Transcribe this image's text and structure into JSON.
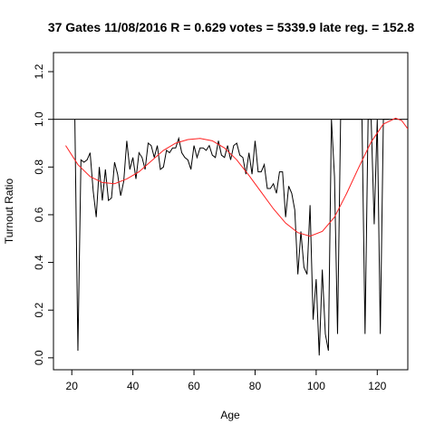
{
  "chart_data": {
    "type": "line",
    "title": "37 Gates 11/08/2016 R = 0.629 votes = 5339.9 late reg. = 152.8",
    "xlabel": "Age",
    "ylabel": "Turnout Ratio",
    "xlim": [
      14,
      130
    ],
    "ylim": [
      -0.05,
      1.28
    ],
    "x_ticks": [
      20,
      40,
      60,
      80,
      100,
      120
    ],
    "x_tick_labels": [
      "20",
      "40",
      "60",
      "80",
      "100",
      "120"
    ],
    "y_ticks": [
      0.0,
      0.2,
      0.4,
      0.6,
      0.8,
      1.0,
      1.2
    ],
    "y_tick_labels": [
      "0.0",
      "0.2",
      "0.4",
      "0.6",
      "0.8",
      "1.0",
      "1.2"
    ],
    "reference_line_y": 1.0,
    "grid": false,
    "legend": "none",
    "series": [
      {
        "color": "#000000",
        "points": [
          [
            21,
            1.0
          ],
          [
            22,
            0.03
          ],
          [
            23,
            0.83
          ],
          [
            24,
            0.82
          ],
          [
            25,
            0.83
          ],
          [
            26,
            0.86
          ],
          [
            27,
            0.7
          ],
          [
            28,
            0.59
          ],
          [
            29,
            0.8
          ],
          [
            30,
            0.66
          ],
          [
            31,
            0.79
          ],
          [
            32,
            0.66
          ],
          [
            33,
            0.67
          ],
          [
            34,
            0.82
          ],
          [
            35,
            0.77
          ],
          [
            36,
            0.68
          ],
          [
            37,
            0.74
          ],
          [
            38,
            0.91
          ],
          [
            39,
            0.79
          ],
          [
            40,
            0.84
          ],
          [
            41,
            0.75
          ],
          [
            42,
            0.86
          ],
          [
            43,
            0.84
          ],
          [
            44,
            0.79
          ],
          [
            45,
            0.9
          ],
          [
            46,
            0.89
          ],
          [
            47,
            0.84
          ],
          [
            48,
            0.89
          ],
          [
            49,
            0.79
          ],
          [
            50,
            0.8
          ],
          [
            51,
            0.87
          ],
          [
            52,
            0.86
          ],
          [
            53,
            0.88
          ],
          [
            54,
            0.88
          ],
          [
            55,
            0.92
          ],
          [
            56,
            0.86
          ],
          [
            57,
            0.84
          ],
          [
            58,
            0.83
          ],
          [
            59,
            0.79
          ],
          [
            60,
            0.89
          ],
          [
            61,
            0.84
          ],
          [
            62,
            0.88
          ],
          [
            63,
            0.88
          ],
          [
            64,
            0.87
          ],
          [
            65,
            0.89
          ],
          [
            66,
            0.85
          ],
          [
            67,
            0.84
          ],
          [
            68,
            0.91
          ],
          [
            69,
            0.85
          ],
          [
            70,
            0.84
          ],
          [
            71,
            0.89
          ],
          [
            72,
            0.83
          ],
          [
            73,
            0.89
          ],
          [
            74,
            0.9
          ],
          [
            75,
            0.85
          ],
          [
            76,
            0.84
          ],
          [
            77,
            0.77
          ],
          [
            78,
            0.86
          ],
          [
            79,
            0.77
          ],
          [
            80,
            0.91
          ],
          [
            81,
            0.78
          ],
          [
            82,
            0.78
          ],
          [
            83,
            0.81
          ],
          [
            84,
            0.71
          ],
          [
            85,
            0.71
          ],
          [
            86,
            0.73
          ],
          [
            87,
            0.69
          ],
          [
            88,
            0.78
          ],
          [
            89,
            0.78
          ],
          [
            90,
            0.59
          ],
          [
            91,
            0.72
          ],
          [
            92,
            0.69
          ],
          [
            93,
            0.62
          ],
          [
            94,
            0.35
          ],
          [
            95,
            0.53
          ],
          [
            96,
            0.38
          ],
          [
            97,
            0.35
          ],
          [
            98,
            0.64
          ],
          [
            99,
            0.16
          ],
          [
            100,
            0.33
          ],
          [
            101,
            0.01
          ],
          [
            102,
            0.37
          ],
          [
            103,
            0.1
          ],
          [
            104,
            0.03
          ],
          [
            105,
            1.0
          ],
          [
            106,
            0.76
          ],
          [
            107,
            0.1
          ],
          [
            108,
            1.0
          ],
          [
            109,
            1.0
          ],
          [
            110,
            1.0
          ],
          [
            111,
            1.0
          ],
          [
            112,
            1.0
          ],
          [
            113,
            1.0
          ],
          [
            114,
            1.0
          ],
          [
            115,
            1.0
          ],
          [
            116,
            0.1
          ],
          [
            117,
            1.0
          ],
          [
            118,
            1.0
          ],
          [
            119,
            0.56
          ],
          [
            120,
            1.0
          ],
          [
            121,
            0.1
          ],
          [
            122,
            1.0
          ],
          [
            123,
            1.0
          ],
          [
            124,
            1.0
          ]
        ]
      },
      {
        "color": "#ff2020",
        "points": [
          [
            18,
            0.89
          ],
          [
            22,
            0.81
          ],
          [
            26,
            0.76
          ],
          [
            30,
            0.735
          ],
          [
            34,
            0.73
          ],
          [
            38,
            0.75
          ],
          [
            42,
            0.78
          ],
          [
            46,
            0.825
          ],
          [
            50,
            0.87
          ],
          [
            54,
            0.9
          ],
          [
            58,
            0.915
          ],
          [
            62,
            0.92
          ],
          [
            66,
            0.91
          ],
          [
            70,
            0.88
          ],
          [
            74,
            0.83
          ],
          [
            78,
            0.765
          ],
          [
            82,
            0.695
          ],
          [
            86,
            0.625
          ],
          [
            90,
            0.565
          ],
          [
            94,
            0.525
          ],
          [
            98,
            0.51
          ],
          [
            102,
            0.53
          ],
          [
            106,
            0.59
          ],
          [
            110,
            0.69
          ],
          [
            114,
            0.8
          ],
          [
            118,
            0.905
          ],
          [
            122,
            0.98
          ],
          [
            126,
            1.005
          ],
          [
            128,
            0.995
          ],
          [
            130,
            0.96
          ]
        ]
      }
    ]
  }
}
